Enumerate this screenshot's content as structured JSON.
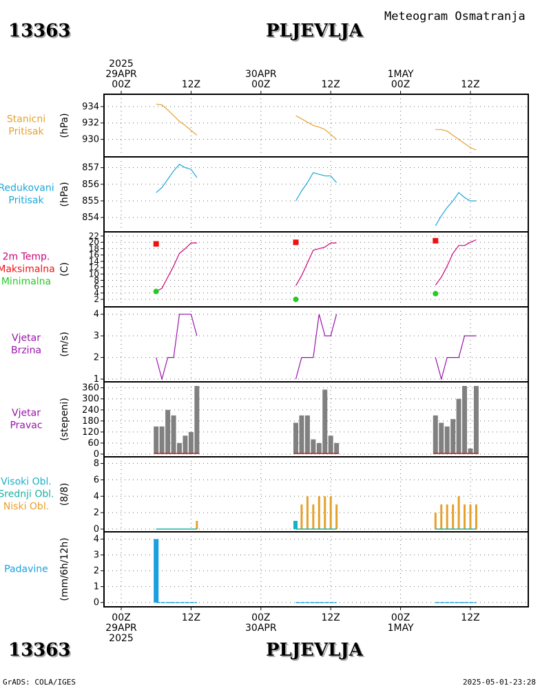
{
  "header": {
    "station_id": "13363",
    "station_name": "PLJEVLJA",
    "subtitle": "Meteogram Osmatranja"
  },
  "footer": {
    "station_id": "13363",
    "station_name": "PLJEVLJA",
    "credit": "GrADS: COLA/IGES",
    "timestamp": "2025-05-01-23:28"
  },
  "time_axis": {
    "ticks": [
      {
        "hour": 0,
        "top": [
          "2025",
          "29APR",
          "00Z"
        ],
        "bottom": [
          "00Z",
          "29APR",
          "2025"
        ]
      },
      {
        "hour": 12,
        "top": [
          "12Z"
        ],
        "bottom": [
          "12Z"
        ]
      },
      {
        "hour": 24,
        "top": [
          "30APR",
          "00Z"
        ],
        "bottom": [
          "00Z",
          "30APR"
        ]
      },
      {
        "hour": 36,
        "top": [
          "12Z"
        ],
        "bottom": [
          "12Z"
        ]
      },
      {
        "hour": 48,
        "top": [
          "1MAY",
          "00Z"
        ],
        "bottom": [
          "00Z",
          "1MAY"
        ]
      },
      {
        "hour": 60,
        "top": [
          "12Z"
        ],
        "bottom": [
          "12Z"
        ]
      }
    ]
  },
  "colors": {
    "station_pressure": "#e6a02a",
    "reduced_pressure": "#1aa6d6",
    "temperature": "#cc0077",
    "max_temp": "#ee1111",
    "min_temp": "#22cc22",
    "wind": "#9911aa",
    "wind_dir_bars": "#808080",
    "high_clouds": "#18b0c8",
    "mid_clouds": "#18b0a0",
    "low_clouds": "#e6a02a",
    "precip": "#18a0e0"
  },
  "chart_data": [
    {
      "id": "station_pressure",
      "type": "line",
      "left_labels": [
        {
          "text": "Stanicni",
          "color": "#e6a02a"
        },
        {
          "text": "Pritisak",
          "color": "#e6a02a"
        }
      ],
      "ylabel": "(hPa)",
      "ylim": [
        928.2,
        935.0
      ],
      "yticks": [
        930,
        932,
        934
      ],
      "segments": [
        {
          "x": [
            6,
            7,
            8,
            9,
            10,
            11,
            12,
            13
          ],
          "y": [
            934.3,
            934.2,
            933.6,
            932.9,
            932.2,
            931.7,
            931.1,
            930.5
          ]
        },
        {
          "x": [
            30,
            31,
            32,
            33,
            34,
            35,
            36,
            37
          ],
          "y": [
            932.9,
            932.5,
            932.1,
            931.7,
            931.5,
            931.2,
            930.6,
            930.0
          ]
        },
        {
          "x": [
            54,
            55,
            56,
            57,
            58,
            59,
            60,
            61
          ],
          "y": [
            931.2,
            931.2,
            931.0,
            930.5,
            930.0,
            929.5,
            929.0,
            928.7
          ]
        }
      ]
    },
    {
      "id": "reduced_pressure",
      "type": "line",
      "left_labels": [
        {
          "text": "Redukovani",
          "color": "#1aa6d6"
        },
        {
          "text": "Pritisak",
          "color": "#1aa6d6"
        }
      ],
      "ylabel": "(hPa)",
      "ylim": [
        853.3,
        857.4
      ],
      "yticks": [
        854,
        855,
        856,
        857
      ],
      "segments": [
        {
          "x": [
            6,
            7,
            8,
            9,
            10,
            11,
            12,
            13
          ],
          "y": [
            855.5,
            855.8,
            856.3,
            856.8,
            857.2,
            857.0,
            856.9,
            856.4
          ]
        },
        {
          "x": [
            30,
            31,
            32,
            33,
            34,
            35,
            36,
            37
          ],
          "y": [
            855.0,
            855.6,
            856.1,
            856.7,
            856.6,
            856.5,
            856.5,
            856.1
          ]
        },
        {
          "x": [
            54,
            55,
            56,
            57,
            58,
            59,
            60,
            61
          ],
          "y": [
            853.5,
            854.1,
            854.6,
            855.0,
            855.5,
            855.2,
            855.0,
            855.0
          ]
        }
      ]
    },
    {
      "id": "temperature",
      "type": "line",
      "left_labels": [
        {
          "text": "2m Temp.",
          "color": "#cc0077"
        },
        {
          "text": "Maksimalna",
          "color": "#ee1111"
        },
        {
          "text": "Minimalna",
          "color": "#22cc22"
        }
      ],
      "ylabel": "(C)",
      "ylim": [
        0.5,
        22
      ],
      "yticks": [
        2,
        4,
        6,
        8,
        10,
        12,
        14,
        16,
        18,
        20,
        22
      ],
      "segments": [
        {
          "x": [
            6,
            7,
            8,
            9,
            10,
            11,
            12,
            13
          ],
          "y": [
            4.5,
            5.5,
            9,
            12.5,
            16.5,
            18,
            19.8,
            19.8
          ]
        },
        {
          "x": [
            30,
            31,
            32,
            33,
            34,
            35,
            36,
            37
          ],
          "y": [
            6.3,
            9.5,
            13.5,
            17.5,
            18.0,
            18.5,
            19.8,
            19.8
          ]
        },
        {
          "x": [
            54,
            55,
            56,
            57,
            58,
            59,
            60,
            61
          ],
          "y": [
            6.5,
            9.0,
            12.5,
            16.5,
            19.0,
            19.0,
            20.0,
            20.8
          ]
        }
      ],
      "max_points": {
        "x": [
          6,
          30,
          54
        ],
        "y": [
          19.5,
          20.0,
          20.5
        ]
      },
      "min_points": {
        "x": [
          6,
          30,
          54
        ],
        "y": [
          4.5,
          2.0,
          3.8
        ]
      }
    },
    {
      "id": "wind_speed",
      "type": "line",
      "left_labels": [
        {
          "text": "Vjetar",
          "color": "#9911aa"
        },
        {
          "text": "Brzina",
          "color": "#9911aa"
        }
      ],
      "ylabel": "(m/s)",
      "ylim": [
        1,
        4.15
      ],
      "yticks": [
        1,
        2,
        3,
        4
      ],
      "segments": [
        {
          "x": [
            6,
            7,
            8,
            9,
            10,
            11,
            12,
            13
          ],
          "y": [
            2,
            1,
            2,
            2,
            4,
            4,
            4,
            3
          ]
        },
        {
          "x": [
            30,
            31,
            32,
            33,
            34,
            35,
            36,
            37
          ],
          "y": [
            1,
            2,
            2,
            2,
            4,
            3,
            3,
            4
          ]
        },
        {
          "x": [
            54,
            55,
            56,
            57,
            58,
            59,
            60,
            61
          ],
          "y": [
            2,
            1,
            2,
            2,
            2,
            3,
            3,
            3
          ]
        }
      ]
    },
    {
      "id": "wind_direction",
      "type": "bar",
      "left_labels": [
        {
          "text": "Vjetar",
          "color": "#9911aa"
        },
        {
          "text": "Pravac",
          "color": "#9911aa"
        }
      ],
      "ylabel": "(stepeni)",
      "ylim": [
        0,
        370
      ],
      "yticks": [
        0,
        60,
        120,
        180,
        240,
        300,
        360
      ],
      "x": [
        6,
        7,
        8,
        9,
        10,
        11,
        12,
        13,
        30,
        31,
        32,
        33,
        34,
        35,
        36,
        37,
        54,
        55,
        56,
        57,
        58,
        59,
        60,
        61
      ],
      "values": [
        150,
        150,
        240,
        210,
        60,
        100,
        120,
        370,
        170,
        210,
        210,
        80,
        60,
        350,
        100,
        60,
        210,
        170,
        150,
        190,
        300,
        370,
        30,
        370
      ],
      "baseline_color": "#cc2222"
    },
    {
      "id": "clouds",
      "type": "bar",
      "left_labels": [
        {
          "text": "Visoki Obl.",
          "color": "#18b0c8"
        },
        {
          "text": "Srednji Obl.",
          "color": "#18b0a0"
        },
        {
          "text": "Niski Obl.",
          "color": "#e6a02a"
        }
      ],
      "ylabel": "(8/8)",
      "ylim": [
        0,
        8.3
      ],
      "yticks": [
        0,
        2,
        4,
        6,
        8
      ],
      "series": [
        {
          "name": "Visoki Obl.",
          "x": [
            30
          ],
          "values": [
            1
          ]
        },
        {
          "name": "Niski Obl.",
          "x": [
            6,
            7,
            8,
            9,
            10,
            11,
            12,
            13,
            30,
            31,
            32,
            33,
            34,
            35,
            36,
            37,
            54,
            55,
            56,
            57,
            58,
            59,
            60,
            61
          ],
          "values": [
            0,
            0,
            0,
            0,
            0,
            0,
            0,
            1,
            1,
            3,
            4,
            3,
            4,
            4,
            4,
            3,
            2,
            3,
            3,
            3,
            4,
            3,
            3,
            3
          ]
        }
      ]
    },
    {
      "id": "precipitation",
      "type": "bar",
      "left_labels": [
        {
          "text": "Padavine",
          "color": "#18a0e0"
        }
      ],
      "ylabel": "(mm/6h/12h)",
      "ylim": [
        -0.1,
        4.2
      ],
      "yticks": [
        0,
        1,
        2,
        3,
        4
      ],
      "x": [
        6
      ],
      "values": [
        4
      ],
      "zero_runs": [
        [
          6,
          13
        ],
        [
          30,
          37
        ],
        [
          54,
          61
        ]
      ]
    }
  ]
}
